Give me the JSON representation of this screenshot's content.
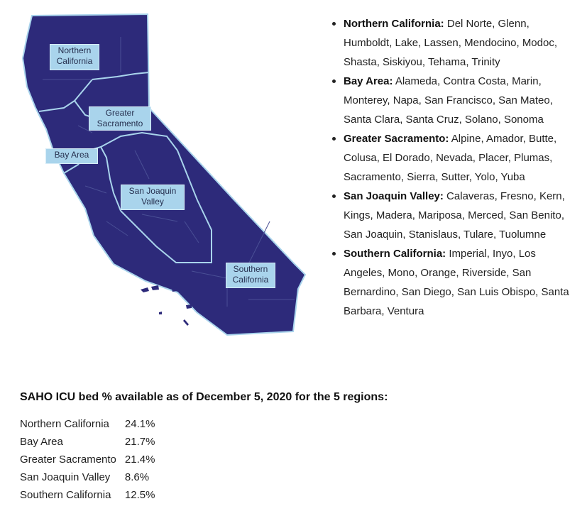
{
  "map": {
    "labels": {
      "northern_california": "Northern\nCalifornia",
      "greater_sacramento": "Greater\nSacramento",
      "bay_area": "Bay Area",
      "san_joaquin_valley": "San Joaquin\nValley",
      "southern_california": "Southern\nCalifornia"
    },
    "fill_color": "#2d2a7a",
    "border_color": "#a9d4ec",
    "label_color": "#a9d4ec"
  },
  "regions": [
    {
      "name": "Northern California:",
      "counties": " Del Norte, Glenn, Humboldt, Lake, Lassen, Mendocino, Modoc, Shasta, Siskiyou, Tehama, Trinity"
    },
    {
      "name": "Bay Area:",
      "counties": " Alameda, Contra Costa, Marin, Monterey, Napa, San Francisco, San Mateo, Santa Clara, Santa Cruz, Solano, Sonoma"
    },
    {
      "name": "Greater Sacramento:",
      "counties": " Alpine, Amador, Butte, Colusa, El Dorado, Nevada, Placer, Plumas, Sacramento, Sierra, Sutter, Yolo, Yuba"
    },
    {
      "name": "San Joaquin Valley:",
      "counties": " Calaveras, Fresno, Kern, Kings, Madera, Mariposa, Merced, San Benito, San Joaquin, Stanislaus, Tulare, Tuolumne"
    },
    {
      "name": "Southern California:",
      "counties": " Imperial, Inyo, Los Angeles, Mono, Orange, Riverside, San Bernardino, San Diego, San Luis Obispo, Santa Barbara, Ventura"
    }
  ],
  "icu": {
    "heading": "SAHO ICU bed % available as of December 5, 2020 for the 5 regions:",
    "rows": [
      {
        "region": "Northern California",
        "value": "24.1%"
      },
      {
        "region": "Bay Area",
        "value": "21.7%"
      },
      {
        "region": "Greater Sacramento",
        "value": "21.4%"
      },
      {
        "region": "San Joaquin Valley",
        "value": "8.6%"
      },
      {
        "region": "Southern California",
        "value": "12.5%"
      }
    ]
  }
}
